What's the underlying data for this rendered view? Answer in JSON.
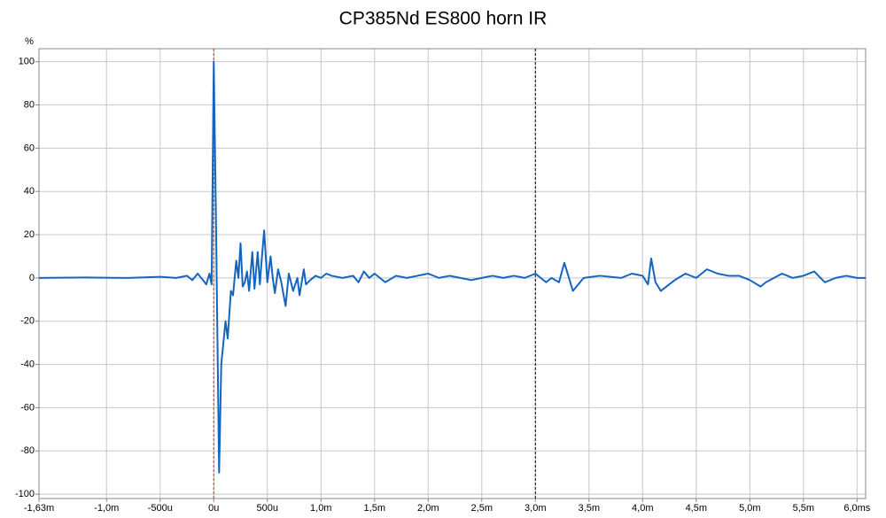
{
  "chart_data": {
    "type": "line",
    "title": "CP385Nd ES800 horn IR",
    "y_label": "%",
    "x": [
      -1.63,
      -1.2,
      -0.8,
      -0.5,
      -0.35,
      -0.25,
      -0.2,
      -0.15,
      -0.1,
      -0.07,
      -0.04,
      -0.02,
      0,
      0.02,
      0.05,
      0.07,
      0.09,
      0.11,
      0.13,
      0.16,
      0.18,
      0.21,
      0.23,
      0.25,
      0.27,
      0.29,
      0.31,
      0.33,
      0.36,
      0.38,
      0.41,
      0.43,
      0.45,
      0.47,
      0.5,
      0.53,
      0.55,
      0.57,
      0.6,
      0.63,
      0.67,
      0.7,
      0.74,
      0.78,
      0.8,
      0.84,
      0.86,
      0.9,
      0.95,
      1.0,
      1.05,
      1.1,
      1.2,
      1.3,
      1.35,
      1.4,
      1.45,
      1.5,
      1.6,
      1.7,
      1.8,
      1.9,
      2.0,
      2.1,
      2.2,
      2.3,
      2.4,
      2.5,
      2.6,
      2.7,
      2.8,
      2.9,
      3.0,
      3.1,
      3.15,
      3.22,
      3.27,
      3.35,
      3.45,
      3.6,
      3.8,
      3.9,
      4.0,
      4.05,
      4.08,
      4.12,
      4.17,
      4.3,
      4.4,
      4.5,
      4.6,
      4.7,
      4.8,
      4.9,
      5.0,
      5.1,
      5.15,
      5.3,
      5.4,
      5.5,
      5.6,
      5.7,
      5.8,
      5.9,
      6.0,
      6.08
    ],
    "series": [
      {
        "color": "#1565c0",
        "values": [
          0,
          0.2,
          0,
          0.5,
          0,
          1,
          -1,
          2,
          -1,
          -3,
          2,
          -3,
          100,
          30,
          -90,
          -40,
          -30,
          -20,
          -28,
          -6,
          -8,
          8,
          0,
          16,
          -4,
          -2,
          3,
          -6,
          12,
          -5,
          12,
          -3,
          10,
          22,
          -2,
          10,
          0,
          -7,
          4,
          -2,
          -13,
          2,
          -6,
          0,
          -8,
          4,
          -3,
          -1,
          1,
          0,
          2,
          1,
          0,
          1,
          -2,
          3,
          0,
          2,
          -2,
          1,
          0,
          1,
          2,
          0,
          1,
          0,
          -1,
          0,
          1,
          0,
          1,
          0,
          2,
          -2,
          0,
          -2,
          7,
          -6,
          0,
          1,
          0,
          2,
          1,
          -3,
          9,
          -2,
          -6,
          -1,
          2,
          0,
          4,
          2,
          1,
          1,
          -1,
          -4,
          -2,
          2,
          0,
          1,
          3,
          -2,
          0,
          1,
          0,
          0
        ]
      }
    ],
    "xlim": [
      -1.63,
      6.08
    ],
    "ylim": [
      -102,
      106
    ],
    "xticks": [
      {
        "value": -1.63,
        "label": "-1,63m"
      },
      {
        "value": -1.0,
        "label": "-1,0m"
      },
      {
        "value": -0.5,
        "label": "-500u"
      },
      {
        "value": 0,
        "label": "0u"
      },
      {
        "value": 0.5,
        "label": "500u"
      },
      {
        "value": 1.0,
        "label": "1,0m"
      },
      {
        "value": 1.5,
        "label": "1,5m"
      },
      {
        "value": 2.0,
        "label": "2,0m"
      },
      {
        "value": 2.5,
        "label": "2,5m"
      },
      {
        "value": 3.0,
        "label": "3,0m"
      },
      {
        "value": 3.5,
        "label": "3,5m"
      },
      {
        "value": 4.0,
        "label": "4,0m"
      },
      {
        "value": 4.5,
        "label": "4,5m"
      },
      {
        "value": 5.0,
        "label": "5,0m"
      },
      {
        "value": 5.5,
        "label": "5,5m"
      },
      {
        "value": 6.0,
        "label": "6,0ms"
      }
    ],
    "yticks": [
      -100,
      -80,
      -60,
      -40,
      -20,
      0,
      20,
      40,
      60,
      80,
      100
    ],
    "grid": true,
    "markers": [
      {
        "x": 0,
        "color": "#e02020"
      },
      {
        "x": 3.0,
        "color": "#000000"
      }
    ]
  }
}
